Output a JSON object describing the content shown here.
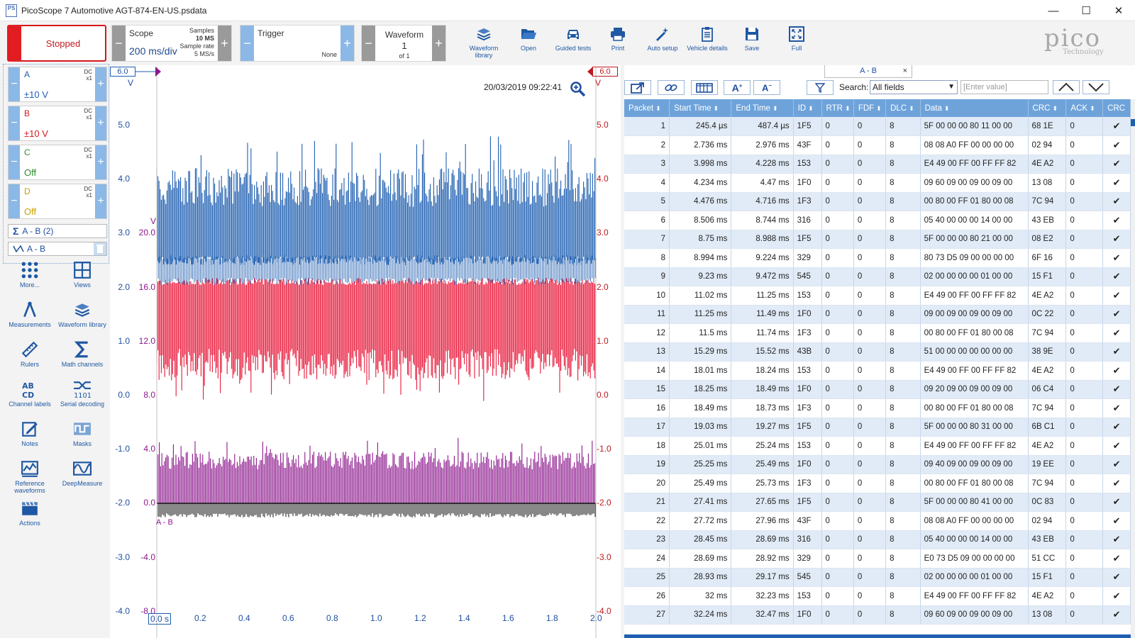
{
  "window": {
    "title": "PicoScope 7 Automotive AGT-874-EN-US.psdata",
    "app_icon": "PS",
    "minimize": "—",
    "maximize": "☐",
    "close": "✕"
  },
  "toolbar": {
    "run_state": "Stopped",
    "scope": {
      "label": "Scope",
      "value": "200 ms/div",
      "samples_label": "Samples",
      "samples_value": "10 MS",
      "rate_label": "Sample rate",
      "rate_value": "5 MS/s"
    },
    "trigger": {
      "label": "Trigger",
      "mode": "None"
    },
    "waveform": {
      "label": "Waveform",
      "value": "1",
      "of": "of 1"
    },
    "buttons": [
      {
        "name": "waveform-library",
        "label": "Waveform library"
      },
      {
        "name": "open",
        "label": "Open"
      },
      {
        "name": "guided-tests",
        "label": "Guided tests"
      },
      {
        "name": "print",
        "label": "Print"
      },
      {
        "name": "auto-setup",
        "label": "Auto setup"
      },
      {
        "name": "vehicle-details",
        "label": "Vehicle details"
      },
      {
        "name": "save",
        "label": "Save"
      },
      {
        "name": "full",
        "label": "Full"
      }
    ],
    "logo": {
      "word": "pico",
      "sub": "Technology"
    }
  },
  "channels": [
    {
      "letter": "A",
      "coupling": "DC",
      "probe": "x1",
      "range": "±10 V",
      "color": "#1f5fb0"
    },
    {
      "letter": "B",
      "coupling": "DC",
      "probe": "x1",
      "range": "±10 V",
      "color": "#d7191c"
    },
    {
      "letter": "C",
      "coupling": "DC",
      "probe": "x1",
      "range": "Off",
      "color": "#2e8b2e"
    },
    {
      "letter": "D",
      "coupling": "DC",
      "probe": "x1",
      "range": "Off",
      "color": "#c8a000"
    }
  ],
  "math": {
    "symbol": "Σ",
    "label": "A - B (2)"
  },
  "serial": {
    "label": "A - B"
  },
  "tools": [
    {
      "name": "more",
      "label": "More..."
    },
    {
      "name": "views",
      "label": "Views"
    },
    {
      "name": "measurements",
      "label": "Measurements"
    },
    {
      "name": "waveform-library",
      "label": "Waveform library"
    },
    {
      "name": "rulers",
      "label": "Rulers"
    },
    {
      "name": "math-channels",
      "label": "Math channels"
    },
    {
      "name": "channel-labels",
      "label": "Channel labels"
    },
    {
      "name": "serial-decoding",
      "label": "Serial decoding"
    },
    {
      "name": "notes",
      "label": "Notes"
    },
    {
      "name": "masks",
      "label": "Masks"
    },
    {
      "name": "reference-waveforms",
      "label": "Reference waveforms"
    },
    {
      "name": "deepmeasure",
      "label": "DeepMeasure"
    },
    {
      "name": "actions",
      "label": "Actions"
    }
  ],
  "scope_view": {
    "timestamp": "20/03/2019 09:22:41",
    "left_marker": "6.0",
    "right_marker": "6.0",
    "left_unit": "V",
    "right_unit": "V",
    "math_unit": "V",
    "y_left": [
      "5.0",
      "4.0",
      "3.0",
      "2.0",
      "1.0",
      "0.0",
      "-1.0",
      "-2.0",
      "-3.0",
      "-4.0"
    ],
    "y_right": [
      "5.0",
      "4.0",
      "3.0",
      "2.0",
      "1.0",
      "0.0",
      "-1.0",
      "-2.0",
      "-3.0",
      "-4.0"
    ],
    "y_math": [
      "20.0",
      "16.0",
      "12.0",
      "8.0",
      "4.0",
      "0.0",
      "-4.0",
      "-8.0"
    ],
    "x_ticks": [
      "0.0 s",
      "0.2",
      "0.4",
      "0.6",
      "0.8",
      "1.0",
      "1.2",
      "1.4",
      "1.6",
      "1.8",
      "2.0"
    ],
    "math_trace_label": "A - B",
    "colors": {
      "a": "#1f5fb0",
      "b": "#e8193a",
      "math": "#8c178c",
      "decode": "#111111"
    }
  },
  "decode_panel": {
    "tab": "A - B",
    "tab_close": "×",
    "search_label": "Search:",
    "search_field": "All fields",
    "value_placeholder": "[Enter value]",
    "columns": [
      "Packet",
      "Start Time",
      "End Time",
      "ID",
      "RTR",
      "FDF",
      "DLC",
      "Data",
      "CRC",
      "ACK",
      "CRC"
    ],
    "rows": [
      [
        "1",
        "245.4 µs",
        "487.4 µs",
        "1F5",
        "0",
        "0",
        "8",
        "5F 00 00 00 80 11 00 00",
        "68 1E",
        "0",
        "✔"
      ],
      [
        "2",
        "2.736 ms",
        "2.976 ms",
        "43F",
        "0",
        "0",
        "8",
        "08 08 A0 FF 00 00 00 00",
        "02 94",
        "0",
        "✔"
      ],
      [
        "3",
        "3.998 ms",
        "4.228 ms",
        "153",
        "0",
        "0",
        "8",
        "E4 49 00 FF 00 FF FF 82",
        "4E A2",
        "0",
        "✔"
      ],
      [
        "4",
        "4.234 ms",
        "4.47 ms",
        "1F0",
        "0",
        "0",
        "8",
        "09 60 09 00 09 00 09 00",
        "13 08",
        "0",
        "✔"
      ],
      [
        "5",
        "4.476 ms",
        "4.716 ms",
        "1F3",
        "0",
        "0",
        "8",
        "00 80 00 FF 01 80 00 08",
        "7C 94",
        "0",
        "✔"
      ],
      [
        "6",
        "8.506 ms",
        "8.744 ms",
        "316",
        "0",
        "0",
        "8",
        "05 40 00 00 00 14 00 00",
        "43 EB",
        "0",
        "✔"
      ],
      [
        "7",
        "8.75 ms",
        "8.988 ms",
        "1F5",
        "0",
        "0",
        "8",
        "5F 00 00 00 80 21 00 00",
        "08 E2",
        "0",
        "✔"
      ],
      [
        "8",
        "8.994 ms",
        "9.224 ms",
        "329",
        "0",
        "0",
        "8",
        "80 73 D5 09 00 00 00 00",
        "6F 16",
        "0",
        "✔"
      ],
      [
        "9",
        "9.23 ms",
        "9.472 ms",
        "545",
        "0",
        "0",
        "8",
        "02 00 00 00 00 01 00 00",
        "15 F1",
        "0",
        "✔"
      ],
      [
        "10",
        "11.02 ms",
        "11.25 ms",
        "153",
        "0",
        "0",
        "8",
        "E4 49 00 FF 00 FF FF 82",
        "4E A2",
        "0",
        "✔"
      ],
      [
        "11",
        "11.25 ms",
        "11.49 ms",
        "1F0",
        "0",
        "0",
        "8",
        "09 00 09 00 09 00 09 00",
        "0C 22",
        "0",
        "✔"
      ],
      [
        "12",
        "11.5 ms",
        "11.74 ms",
        "1F3",
        "0",
        "0",
        "8",
        "00 80 00 FF 01 80 00 08",
        "7C 94",
        "0",
        "✔"
      ],
      [
        "13",
        "15.29 ms",
        "15.52 ms",
        "43B",
        "0",
        "0",
        "8",
        "51 00 00 00 00 00 00 00",
        "38 9E",
        "0",
        "✔"
      ],
      [
        "14",
        "18.01 ms",
        "18.24 ms",
        "153",
        "0",
        "0",
        "8",
        "E4 49 00 FF 00 FF FF 82",
        "4E A2",
        "0",
        "✔"
      ],
      [
        "15",
        "18.25 ms",
        "18.49 ms",
        "1F0",
        "0",
        "0",
        "8",
        "09 20 09 00 09 00 09 00",
        "06 C4",
        "0",
        "✔"
      ],
      [
        "16",
        "18.49 ms",
        "18.73 ms",
        "1F3",
        "0",
        "0",
        "8",
        "00 80 00 FF 01 80 00 08",
        "7C 94",
        "0",
        "✔"
      ],
      [
        "17",
        "19.03 ms",
        "19.27 ms",
        "1F5",
        "0",
        "0",
        "8",
        "5F 00 00 00 80 31 00 00",
        "6B C1",
        "0",
        "✔"
      ],
      [
        "18",
        "25.01 ms",
        "25.24 ms",
        "153",
        "0",
        "0",
        "8",
        "E4 49 00 FF 00 FF FF 82",
        "4E A2",
        "0",
        "✔"
      ],
      [
        "19",
        "25.25 ms",
        "25.49 ms",
        "1F0",
        "0",
        "0",
        "8",
        "09 40 09 00 09 00 09 00",
        "19 EE",
        "0",
        "✔"
      ],
      [
        "20",
        "25.49 ms",
        "25.73 ms",
        "1F3",
        "0",
        "0",
        "8",
        "00 80 00 FF 01 80 00 08",
        "7C 94",
        "0",
        "✔"
      ],
      [
        "21",
        "27.41 ms",
        "27.65 ms",
        "1F5",
        "0",
        "0",
        "8",
        "5F 00 00 00 80 41 00 00",
        "0C 83",
        "0",
        "✔"
      ],
      [
        "22",
        "27.72 ms",
        "27.96 ms",
        "43F",
        "0",
        "0",
        "8",
        "08 08 A0 FF 00 00 00 00",
        "02 94",
        "0",
        "✔"
      ],
      [
        "23",
        "28.45 ms",
        "28.69 ms",
        "316",
        "0",
        "0",
        "8",
        "05 40 00 00 00 14 00 00",
        "43 EB",
        "0",
        "✔"
      ],
      [
        "24",
        "28.69 ms",
        "28.92 ms",
        "329",
        "0",
        "0",
        "8",
        "E0 73 D5 09 00 00 00 00",
        "51 CC",
        "0",
        "✔"
      ],
      [
        "25",
        "28.93 ms",
        "29.17 ms",
        "545",
        "0",
        "0",
        "8",
        "02 00 00 00 00 01 00 00",
        "15 F1",
        "0",
        "✔"
      ],
      [
        "26",
        "32 ms",
        "32.23 ms",
        "153",
        "0",
        "0",
        "8",
        "E4 49 00 FF 00 FF FF 82",
        "4E A2",
        "0",
        "✔"
      ],
      [
        "27",
        "32.24 ms",
        "32.47 ms",
        "1F0",
        "0",
        "0",
        "8",
        "09 60 09 00 09 00 09 00",
        "13 08",
        "0",
        "✔"
      ]
    ]
  }
}
